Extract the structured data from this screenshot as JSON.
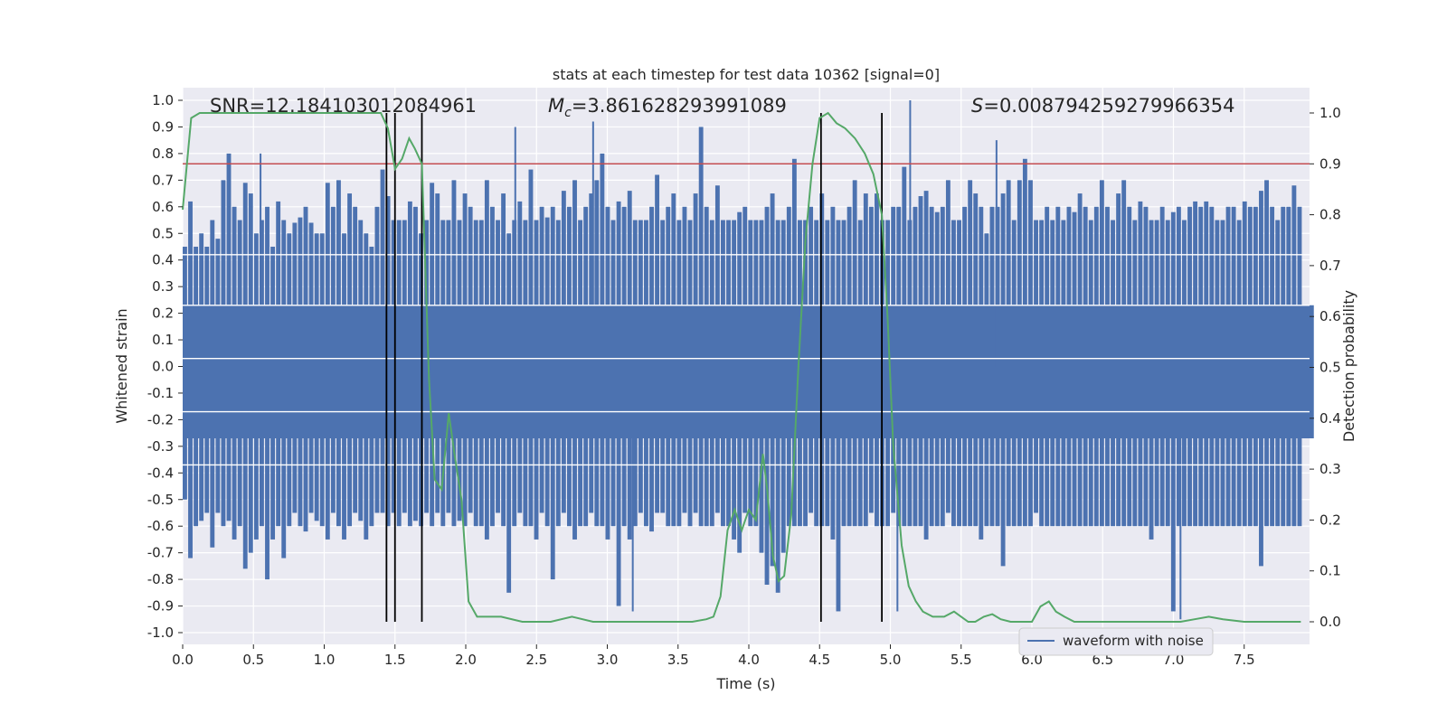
{
  "chart_data": {
    "type": "line",
    "title": "stats at each timestep for test data 10362 [signal=0]",
    "xlabel": "Time (s)",
    "ylabel": "Whitened strain",
    "y2label": "Detection probability",
    "xlim": [
      0.0,
      8.0
    ],
    "ylim": [
      -1.05,
      1.05
    ],
    "y2lim": [
      -0.045,
      1.045
    ],
    "x_ticks": [
      "0.0",
      "0.5",
      "1.0",
      "1.5",
      "2.0",
      "2.5",
      "3.0",
      "3.5",
      "4.0",
      "4.5",
      "5.0",
      "5.5",
      "6.0",
      "6.5",
      "7.0",
      "7.5"
    ],
    "y_ticks": [
      "1.0",
      "0.9",
      "0.8",
      "0.7",
      "0.6",
      "0.5",
      "0.4",
      "0.3",
      "0.2",
      "0.1",
      "0.0",
      "-0.1",
      "-0.2",
      "-0.3",
      "-0.4",
      "-0.5",
      "-0.6",
      "-0.7",
      "-0.8",
      "-0.9",
      "-1.0"
    ],
    "y2_ticks": [
      "1.0",
      "0.9",
      "0.8",
      "0.7",
      "0.6",
      "0.5",
      "0.4",
      "0.3",
      "0.2",
      "0.1",
      "0.0"
    ],
    "grid": true,
    "legend": {
      "position": "bottom-right",
      "entries": [
        "waveform with noise"
      ]
    },
    "annotations": {
      "snr": "SNR=12.184103012084961",
      "mc_symbol": "M",
      "mc_sub": "c",
      "mc_value": "=3.861628293991089",
      "s_symbol": "S",
      "s_value": "=0.008794259279966354"
    },
    "threshold": {
      "value": 0.9,
      "axis": "right"
    },
    "vertical_lines": [
      1.44,
      1.5,
      1.69,
      4.51,
      4.94
    ],
    "series": [
      {
        "name": "waveform with noise",
        "axis": "left",
        "color": "#4c72b0",
        "envelope_top": [
          0.45,
          0.62,
          0.45,
          0.5,
          0.45,
          0.55,
          0.48,
          0.7,
          0.8,
          0.6,
          0.55,
          0.69,
          0.65,
          0.5,
          0.55,
          0.6,
          0.45,
          0.62,
          0.55,
          0.5,
          0.54,
          0.56,
          0.6,
          0.54,
          0.5,
          0.5,
          0.69,
          0.6,
          0.7,
          0.5,
          0.65,
          0.6,
          0.55,
          0.5,
          0.45,
          0.6,
          0.74,
          0.64,
          0.55,
          0.55,
          0.55,
          0.62,
          0.6,
          0.5,
          0.55,
          0.69,
          0.65,
          0.55,
          0.55,
          0.7,
          0.55,
          0.65,
          0.6,
          0.55,
          0.55,
          0.7,
          0.6,
          0.55,
          0.65,
          0.5,
          0.55,
          0.62,
          0.55,
          0.74,
          0.55,
          0.6,
          0.56,
          0.6,
          0.55,
          0.66,
          0.6,
          0.7,
          0.55,
          0.6,
          0.65,
          0.7,
          0.8,
          0.6,
          0.55,
          0.62,
          0.6,
          0.66,
          0.55,
          0.55,
          0.55,
          0.6,
          0.72,
          0.55,
          0.6,
          0.65,
          0.55,
          0.6,
          0.55,
          0.65,
          0.9,
          0.6,
          0.55,
          0.68,
          0.55,
          0.55,
          0.55,
          0.58,
          0.6,
          0.55,
          0.55,
          0.55,
          0.6,
          0.65,
          0.55,
          0.55,
          0.6,
          0.78,
          0.55,
          0.55,
          0.6,
          0.55,
          0.65,
          0.55,
          0.6,
          0.55,
          0.55,
          0.6,
          0.7,
          0.55,
          0.65,
          0.6,
          0.65,
          0.55,
          0.55,
          0.6,
          0.6,
          0.75,
          0.55,
          0.6,
          0.64,
          0.66,
          0.6,
          0.58,
          0.6,
          0.7,
          0.55,
          0.55,
          0.6,
          0.7,
          0.65,
          0.6,
          0.5,
          0.6,
          0.6,
          0.65,
          0.7,
          0.55,
          0.7,
          0.78,
          0.7,
          0.55,
          0.55,
          0.6,
          0.55,
          0.6,
          0.55,
          0.6,
          0.58,
          0.65,
          0.6,
          0.55,
          0.6,
          0.7,
          0.6,
          0.55,
          0.65,
          0.7,
          0.6,
          0.55,
          0.62,
          0.6,
          0.55,
          0.55,
          0.6,
          0.55,
          0.58,
          0.6,
          0.55,
          0.6,
          0.62,
          0.6,
          0.62,
          0.6,
          0.55,
          0.55,
          0.6,
          0.6,
          0.55,
          0.62,
          0.6,
          0.6,
          0.66,
          0.7,
          0.6,
          0.55,
          0.6,
          0.6,
          0.68,
          0.6,
          0.55,
          0.55
        ],
        "envelope_bottom": [
          -0.5,
          -0.72,
          -0.6,
          -0.58,
          -0.55,
          -0.68,
          -0.55,
          -0.6,
          -0.58,
          -0.65,
          -0.6,
          -0.76,
          -0.7,
          -0.65,
          -0.6,
          -0.8,
          -0.65,
          -0.6,
          -0.72,
          -0.6,
          -0.55,
          -0.6,
          -0.62,
          -0.55,
          -0.58,
          -0.6,
          -0.65,
          -0.55,
          -0.6,
          -0.65,
          -0.6,
          -0.55,
          -0.58,
          -0.65,
          -0.6,
          -0.55,
          -0.55,
          -0.6,
          -0.55,
          -0.6,
          -0.55,
          -0.6,
          -0.58,
          -0.6,
          -0.55,
          -0.6,
          -0.55,
          -0.6,
          -0.55,
          -0.6,
          -0.58,
          -0.6,
          -0.55,
          -0.6,
          -0.6,
          -0.65,
          -0.6,
          -0.55,
          -0.6,
          -0.85,
          -0.6,
          -0.55,
          -0.6,
          -0.6,
          -0.65,
          -0.55,
          -0.6,
          -0.8,
          -0.6,
          -0.55,
          -0.6,
          -0.65,
          -0.6,
          -0.6,
          -0.55,
          -0.6,
          -0.6,
          -0.65,
          -0.6,
          -0.9,
          -0.6,
          -0.65,
          -0.6,
          -0.55,
          -0.6,
          -0.62,
          -0.55,
          -0.55,
          -0.6,
          -0.6,
          -0.6,
          -0.55,
          -0.6,
          -0.55,
          -0.6,
          -0.6,
          -0.6,
          -0.55,
          -0.6,
          -0.6,
          -0.65,
          -0.7,
          -0.55,
          -0.6,
          -0.6,
          -0.7,
          -0.82,
          -0.75,
          -0.85,
          -0.7,
          -0.6,
          -0.6,
          -0.6,
          -0.6,
          -0.55,
          -0.6,
          -0.6,
          -0.6,
          -0.65,
          -0.92,
          -0.6,
          -0.6,
          -0.6,
          -0.6,
          -0.6,
          -0.55,
          -0.6,
          -0.6,
          -0.6,
          -0.55,
          -0.6,
          -0.6,
          -0.6,
          -0.6,
          -0.6,
          -0.65,
          -0.6,
          -0.6,
          -0.6,
          -0.55,
          -0.6,
          -0.6,
          -0.6,
          -0.6,
          -0.6,
          -0.65,
          -0.6,
          -0.6,
          -0.6,
          -0.75,
          -0.6,
          -0.6,
          -0.6,
          -0.6,
          -0.6,
          -0.55,
          -0.6,
          -0.6,
          -0.6,
          -0.6,
          -0.6,
          -0.6,
          -0.6,
          -0.6,
          -0.6,
          -0.6,
          -0.6,
          -0.6,
          -0.6,
          -0.6,
          -0.6,
          -0.6,
          -0.6,
          -0.6,
          -0.6,
          -0.6,
          -0.65,
          -0.6,
          -0.6,
          -0.6,
          -0.92,
          -0.6,
          -0.6,
          -0.6,
          -0.6,
          -0.6,
          -0.6,
          -0.6,
          -0.6,
          -0.6,
          -0.6,
          -0.6,
          -0.6,
          -0.6,
          -0.6,
          -0.6,
          -0.75,
          -0.6,
          -0.6,
          -0.6,
          -0.6,
          -0.6,
          -0.6,
          -0.6
        ]
      },
      {
        "name": "",
        "axis": "right",
        "color": "#55a868",
        "x": [
          0.0,
          0.06,
          0.12,
          0.2,
          0.3,
          0.5,
          0.8,
          1.0,
          1.15,
          1.25,
          1.35,
          1.4,
          1.45,
          1.5,
          1.55,
          1.6,
          1.64,
          1.69,
          1.74,
          1.78,
          1.83,
          1.88,
          1.92,
          1.97,
          2.02,
          2.08,
          2.15,
          2.25,
          2.4,
          2.6,
          2.75,
          2.9,
          3.0,
          3.2,
          3.4,
          3.6,
          3.7,
          3.75,
          3.8,
          3.85,
          3.9,
          3.95,
          4.0,
          4.05,
          4.1,
          4.13,
          4.17,
          4.21,
          4.25,
          4.3,
          4.35,
          4.4,
          4.45,
          4.5,
          4.56,
          4.62,
          4.68,
          4.75,
          4.82,
          4.88,
          4.94,
          4.98,
          5.02,
          5.08,
          5.13,
          5.18,
          5.23,
          5.3,
          5.38,
          5.45,
          5.5,
          5.55,
          5.6,
          5.66,
          5.72,
          5.78,
          5.85,
          5.92,
          6.0,
          6.06,
          6.12,
          6.17,
          6.23,
          6.3,
          6.4,
          6.5,
          6.7,
          6.9,
          7.05,
          7.15,
          7.25,
          7.35,
          7.5,
          7.7,
          7.9
        ],
        "values": [
          0.81,
          0.99,
          1.0,
          1.0,
          1.0,
          1.0,
          1.0,
          1.0,
          1.0,
          1.0,
          1.0,
          1.0,
          0.97,
          0.89,
          0.91,
          0.95,
          0.93,
          0.9,
          0.48,
          0.28,
          0.26,
          0.41,
          0.33,
          0.24,
          0.04,
          0.01,
          0.01,
          0.01,
          0.0,
          0.0,
          0.01,
          0.0,
          0.0,
          0.0,
          0.0,
          0.0,
          0.005,
          0.01,
          0.05,
          0.18,
          0.22,
          0.18,
          0.22,
          0.2,
          0.33,
          0.26,
          0.13,
          0.08,
          0.09,
          0.21,
          0.5,
          0.75,
          0.9,
          0.99,
          1.0,
          0.98,
          0.97,
          0.95,
          0.92,
          0.88,
          0.8,
          0.6,
          0.35,
          0.15,
          0.07,
          0.04,
          0.02,
          0.01,
          0.01,
          0.02,
          0.01,
          0.0,
          0.0,
          0.01,
          0.015,
          0.005,
          0.0,
          0.0,
          0.0,
          0.03,
          0.04,
          0.02,
          0.01,
          0.0,
          0.0,
          0.0,
          0.0,
          0.0,
          0.0,
          0.005,
          0.01,
          0.005,
          0.0,
          0.0,
          0.0
        ]
      }
    ]
  }
}
